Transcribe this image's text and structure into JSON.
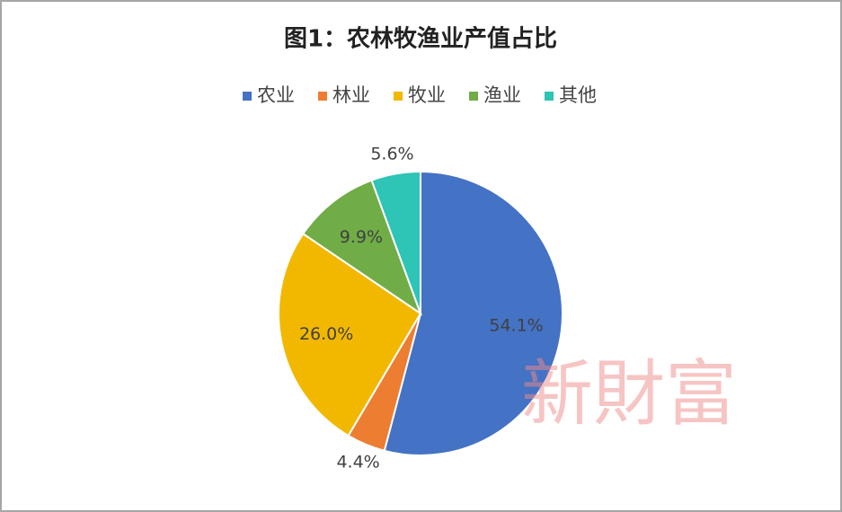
{
  "chart_data": {
    "type": "pie",
    "title": "图1：农林牧渔业产值占比",
    "categories": [
      "农业",
      "林业",
      "牧业",
      "渔业",
      "其他"
    ],
    "values": [
      54.1,
      4.4,
      26.0,
      9.9,
      5.6
    ],
    "value_labels": [
      "54.1%",
      "4.4%",
      "26.0%",
      "9.9%",
      "5.6%"
    ],
    "colors": [
      "#4472c4",
      "#ed7d31",
      "#f2b800",
      "#70ad47",
      "#2ec4b6"
    ],
    "legend": "top",
    "watermark": "新財富"
  }
}
